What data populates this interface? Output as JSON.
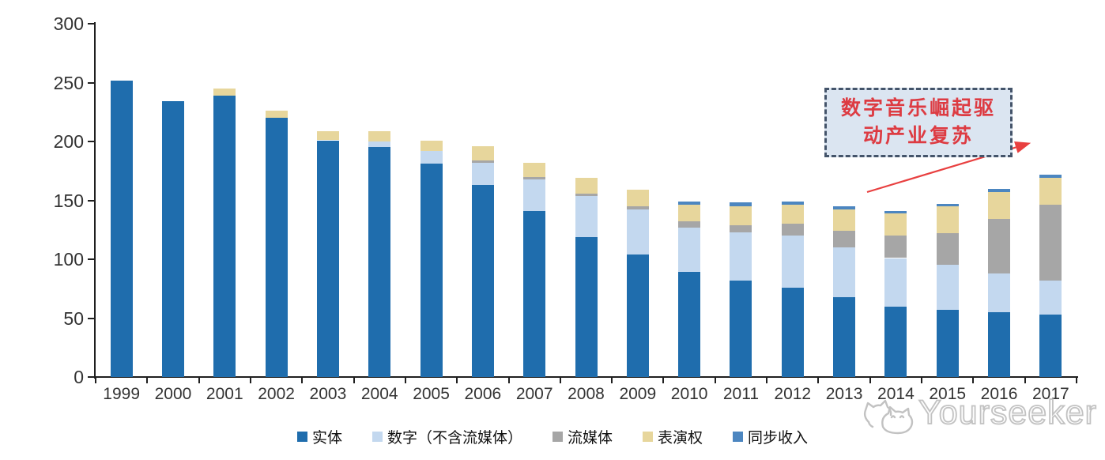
{
  "chart_data": {
    "type": "bar",
    "stacked": true,
    "categories": [
      "1999",
      "2000",
      "2001",
      "2002",
      "2003",
      "2004",
      "2005",
      "2006",
      "2007",
      "2008",
      "2009",
      "2010",
      "2011",
      "2012",
      "2013",
      "2014",
      "2015",
      "2016",
      "2017"
    ],
    "series": [
      {
        "name": "实体",
        "color": "#1F6DAD",
        "values": [
          252,
          234,
          239,
          220,
          201,
          195,
          181,
          163,
          141,
          119,
          104,
          89,
          82,
          76,
          68,
          60,
          57,
          55,
          53
        ]
      },
      {
        "name": "数字（不含流媒体）",
        "color": "#C3D8EF",
        "values": [
          0,
          0,
          0,
          0,
          0,
          5,
          11,
          19,
          27,
          35,
          38,
          38,
          41,
          44,
          42,
          41,
          38,
          33,
          29
        ]
      },
      {
        "name": "流媒体",
        "color": "#A6A6A6",
        "values": [
          0,
          0,
          0,
          0,
          0,
          0,
          0,
          2,
          2,
          2,
          3,
          5,
          6,
          10,
          14,
          19,
          27,
          46,
          64
        ]
      },
      {
        "name": "表演权",
        "color": "#E7D69C",
        "values": [
          0,
          0,
          6,
          6,
          8,
          9,
          9,
          12,
          12,
          13,
          14,
          14,
          16,
          16,
          18,
          19,
          23,
          23,
          23
        ]
      },
      {
        "name": "同步收入",
        "color": "#4C86C0",
        "values": [
          0,
          0,
          0,
          0,
          0,
          0,
          0,
          0,
          0,
          0,
          0,
          3,
          3,
          3,
          3,
          2,
          2,
          3,
          3
        ]
      }
    ],
    "ylim": [
      0,
      300
    ],
    "yticks": [
      0,
      50,
      100,
      150,
      200,
      250,
      300
    ],
    "grid": false,
    "legend_position": "bottom",
    "title": "",
    "xlabel": "",
    "ylabel": ""
  },
  "annotation": {
    "line1": "数字音乐崛起驱",
    "line2": "动产业复苏",
    "fill_color": "#DBE5F1",
    "border_color": "#44546A",
    "text_color": "#DD3B42",
    "arrow_color": "#E84040"
  },
  "watermark": {
    "text": "Yourseeker",
    "logo": "cat-logo-icon",
    "color": "#C2C2C2"
  }
}
